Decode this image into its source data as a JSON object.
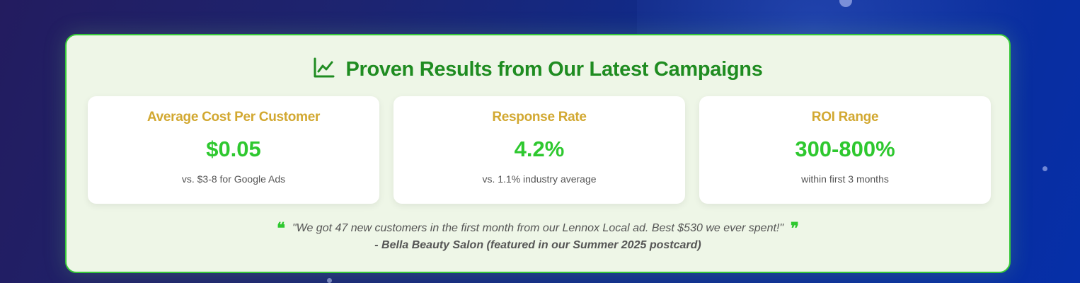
{
  "section": {
    "title": "Proven Results from Our Latest Campaigns",
    "title_icon": "chart-line-icon"
  },
  "stats": [
    {
      "label": "Average Cost Per Customer",
      "value": "$0.05",
      "note": "vs. $3-8 for Google Ads"
    },
    {
      "label": "Response Rate",
      "value": "4.2%",
      "note": "vs. 1.1% industry average"
    },
    {
      "label": "ROI Range",
      "value": "300-800%",
      "note": "within first 3 months"
    }
  ],
  "testimonial": {
    "quote": "\"We got 47 new customers in the first month from our Lennox Local ad. Best $530 we ever spent!\"",
    "attribution": "- Bella Beauty Salon (featured in our Summer 2025 postcard)",
    "open_icon": "quote-left-icon",
    "close_icon": "quote-right-icon"
  },
  "colors": {
    "title_green": "#1f8c21",
    "value_green": "#2ec82f",
    "label_gold": "#d2a831",
    "panel_border": "#37c839",
    "panel_bg": "#eef6e7"
  }
}
